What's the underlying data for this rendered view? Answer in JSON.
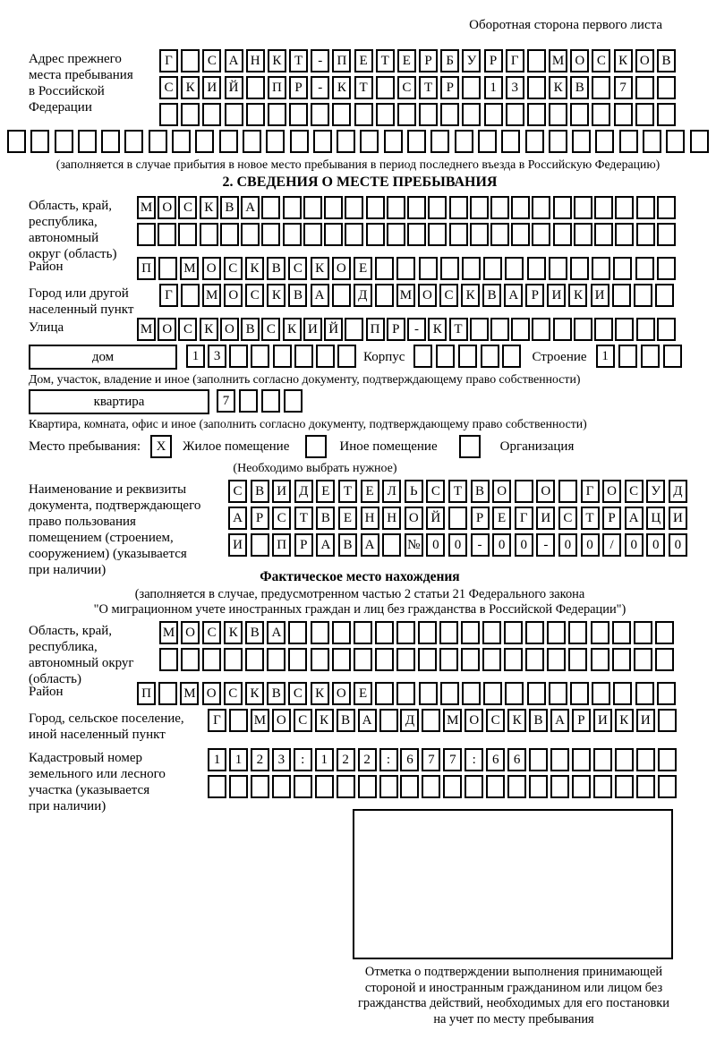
{
  "header_note": "Оборотная сторона первого листа",
  "prev_address": {
    "label_lines": [
      "Адрес прежнего",
      "места пребывания",
      "в Российской",
      "Федерации"
    ],
    "rows": [
      {
        "chars": [
          "Г",
          "",
          "С",
          "А",
          "Н",
          "К",
          "Т",
          "-",
          "П",
          "Е",
          "Т",
          "Е",
          "Р",
          "Б",
          "У",
          "Р",
          "Г",
          "",
          "М",
          "О",
          "С",
          "К",
          "О",
          "В"
        ],
        "total": 24
      },
      {
        "chars": [
          "С",
          "К",
          "И",
          "Й",
          "",
          "П",
          "Р",
          "-",
          "К",
          "Т",
          "",
          "С",
          "Т",
          "Р",
          "",
          "1",
          "3",
          "",
          "К",
          "В",
          "",
          "7"
        ],
        "total": 24
      },
      {
        "chars": [],
        "total": 24
      },
      {
        "chars": [],
        "total": 30
      }
    ],
    "caption": "(заполняется в случае прибытия в новое место пребывания в период последнего въезда в Российскую Федерацию)"
  },
  "section2": {
    "title": "2. СВЕДЕНИЯ О МЕСТЕ ПРЕБЫВАНИЯ",
    "region": {
      "label_lines": [
        "Область, край,",
        "республика,",
        "автономный",
        "округ (область)"
      ],
      "rows": [
        {
          "chars": [
            "М",
            "О",
            "С",
            "К",
            "В",
            "А"
          ],
          "total": 26
        },
        {
          "chars": [],
          "total": 26
        }
      ]
    },
    "district": {
      "label": "Район",
      "row": {
        "chars": [
          "П",
          "",
          "М",
          "О",
          "С",
          "К",
          "В",
          "С",
          "К",
          "О",
          "Е"
        ],
        "total": 25
      }
    },
    "city": {
      "label_lines": [
        "Город или другой",
        "населенный пункт"
      ],
      "row": {
        "chars": [
          "Г",
          "",
          "М",
          "О",
          "С",
          "К",
          "В",
          "А",
          "",
          "Д",
          "",
          "М",
          "О",
          "С",
          "К",
          "В",
          "А",
          "Р",
          "И",
          "К",
          "И"
        ],
        "total": 24
      }
    },
    "street": {
      "label": "Улица",
      "row": {
        "chars": [
          "М",
          "О",
          "С",
          "К",
          "О",
          "В",
          "С",
          "К",
          "И",
          "Й",
          "",
          "П",
          "Р",
          "-",
          "К",
          "Т"
        ],
        "total": 26
      }
    },
    "house": {
      "box_label": "дом",
      "cells": {
        "chars": [
          "1",
          "3"
        ],
        "total": 8
      },
      "korpus_label": "Корпус",
      "korpus_cells": {
        "chars": [],
        "total": 5
      },
      "stroenie_label": "Строение",
      "stroenie_cells": {
        "chars": [
          "1"
        ],
        "total": 4
      },
      "caption": "Дом, участок, владение и иное (заполнить согласно документу, подтверждающему право собственности)"
    },
    "apartment": {
      "box_label": "квартира",
      "cells": {
        "chars": [
          "7"
        ],
        "total": 4
      },
      "caption": "Квартира, комната, офис и иное (заполнить согласно документу, подтверждающему право собственности)"
    },
    "stay_type": {
      "label": "Место пребывания:",
      "options": [
        {
          "label": "Жилое помещение",
          "checked": "X"
        },
        {
          "label": "Иное помещение",
          "checked": ""
        },
        {
          "label": "Организация",
          "checked": ""
        }
      ],
      "note": "(Необходимо выбрать нужное)"
    },
    "document": {
      "label_lines": [
        "Наименование и реквизиты",
        "документа, подтверждающего",
        "право пользования",
        "помещением (строением,",
        "сооружением) (указывается",
        "при наличии)"
      ],
      "rows": [
        {
          "chars": [
            "С",
            "В",
            "И",
            "Д",
            "Е",
            "Т",
            "Е",
            "Л",
            "Ь",
            "С",
            "Т",
            "В",
            "О",
            "",
            "О",
            "",
            "Г",
            "О",
            "С",
            "У",
            "Д"
          ],
          "total": 21
        },
        {
          "chars": [
            "А",
            "Р",
            "С",
            "Т",
            "В",
            "Е",
            "Н",
            "Н",
            "О",
            "Й",
            "",
            "Р",
            "Е",
            "Г",
            "И",
            "С",
            "Т",
            "Р",
            "А",
            "Ц",
            "И"
          ],
          "total": 21
        },
        {
          "chars": [
            "И",
            "",
            "П",
            "Р",
            "А",
            "В",
            "А",
            "",
            "№",
            "0",
            "0",
            "-",
            "0",
            "0",
            "-",
            "0",
            "0",
            "/",
            "0",
            "0",
            "0"
          ],
          "total": 21
        }
      ]
    }
  },
  "section3": {
    "title": "Фактическое место нахождения",
    "subtitle_lines": [
      "(заполняется в случае, предусмотренном частью 2 статьи 21 Федерального закона",
      "\"О миграционном учете иностранных граждан и лиц без гражданства в Российской Федерации\")"
    ],
    "region": {
      "label_lines": [
        "Область, край,",
        "республика,",
        "автономный округ",
        "(область)"
      ],
      "rows": [
        {
          "chars": [
            "М",
            "О",
            "С",
            "К",
            "В",
            "А"
          ],
          "total": 24
        },
        {
          "chars": [],
          "total": 24
        }
      ]
    },
    "district": {
      "label": "Район",
      "row": {
        "chars": [
          "П",
          "",
          "М",
          "О",
          "С",
          "К",
          "В",
          "С",
          "К",
          "О",
          "Е"
        ],
        "total": 25
      }
    },
    "city": {
      "label_lines": [
        "Город, сельское поселение,",
        "иной населенный пункт"
      ],
      "row": {
        "chars": [
          "Г",
          "",
          "М",
          "О",
          "С",
          "К",
          "В",
          "А",
          "",
          "Д",
          "",
          "М",
          "О",
          "С",
          "К",
          "В",
          "А",
          "Р",
          "И",
          "К",
          "И"
        ],
        "total": 22
      }
    },
    "cadastre": {
      "label_lines": [
        "Кадастровый номер",
        "земельного или лесного",
        "участка (указывается",
        "при наличии)"
      ],
      "rows": [
        {
          "chars": [
            "1",
            "1",
            "2",
            "3",
            ":",
            "1",
            "2",
            "2",
            ":",
            "6",
            "7",
            "7",
            ":",
            "6",
            "6"
          ],
          "total": 22
        },
        {
          "chars": [],
          "total": 22
        }
      ]
    },
    "stamp_caption_lines": [
      "Отметка о подтверждении выполнения принимающей",
      "стороной и иностранным гражданином или лицом без",
      "гражданства действий, необходимых для его постановки",
      "на учет по месту пребывания"
    ]
  }
}
